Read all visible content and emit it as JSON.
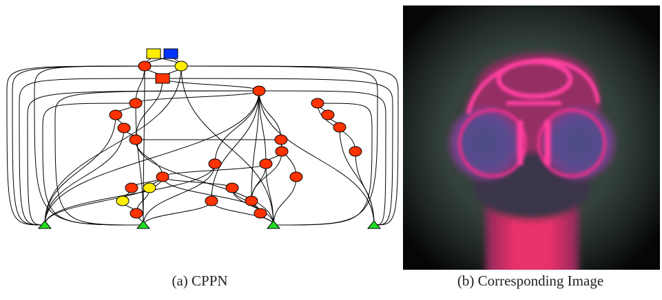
{
  "panels": [
    {
      "caption": "(a) CPPN"
    },
    {
      "caption": "(b) Corresponding Image"
    }
  ]
}
